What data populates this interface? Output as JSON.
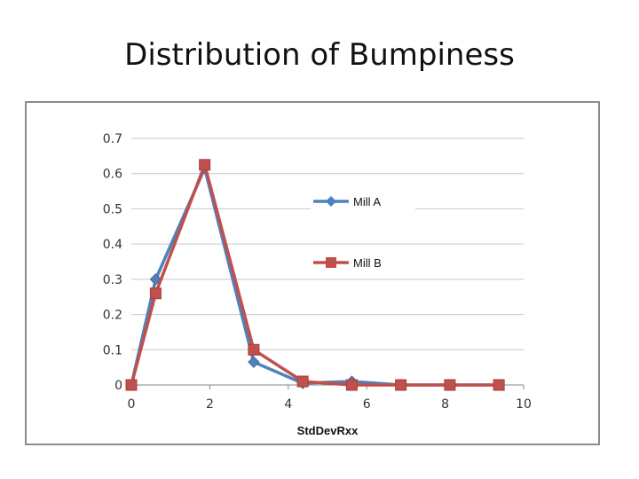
{
  "slide": {
    "title": "Distribution of Bumpiness"
  },
  "chart_data": {
    "type": "line",
    "title": "",
    "xlabel": "StdDevRxx",
    "ylabel": "",
    "xlim": [
      0,
      10
    ],
    "ylim": [
      0,
      0.7
    ],
    "xticks": [
      0,
      2,
      4,
      6,
      8,
      10
    ],
    "xtick_labels": [
      "0",
      "2",
      "4",
      "6",
      "8",
      "10"
    ],
    "yticks": [
      0,
      0.1,
      0.2,
      0.3,
      0.4,
      0.5,
      0.6,
      0.7
    ],
    "ytick_labels": [
      "0",
      "0.1",
      "0.2",
      "0.3",
      "0.4",
      "0.5",
      "0.6",
      "0.7"
    ],
    "grid": "horizontal",
    "legend": "right",
    "series": [
      {
        "name": "Mill A",
        "color": "#4f81bd",
        "marker": "diamond",
        "x": [
          0,
          0.62,
          1.87,
          3.12,
          4.37,
          5.62,
          6.87,
          8.12,
          9.37
        ],
        "y": [
          0,
          0.3,
          0.615,
          0.065,
          0.005,
          0.01,
          0,
          0,
          0
        ]
      },
      {
        "name": "Mill B",
        "color": "#c0504d",
        "marker": "square",
        "x": [
          0,
          0.62,
          1.87,
          3.12,
          4.37,
          5.62,
          6.87,
          8.12,
          9.37
        ],
        "y": [
          0,
          0.26,
          0.625,
          0.1,
          0.01,
          0,
          0,
          0,
          0
        ]
      }
    ]
  }
}
